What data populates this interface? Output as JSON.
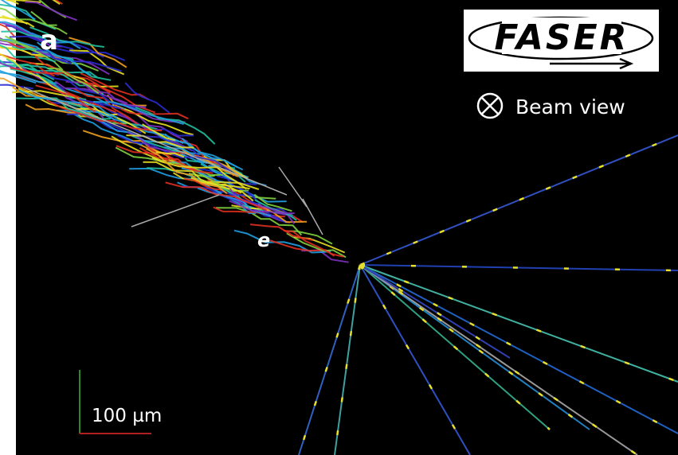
{
  "panel_label": "a",
  "logo": "FASER",
  "beam_view": "Beam view",
  "particle_label": "e",
  "scale_bar": "100 µm"
}
